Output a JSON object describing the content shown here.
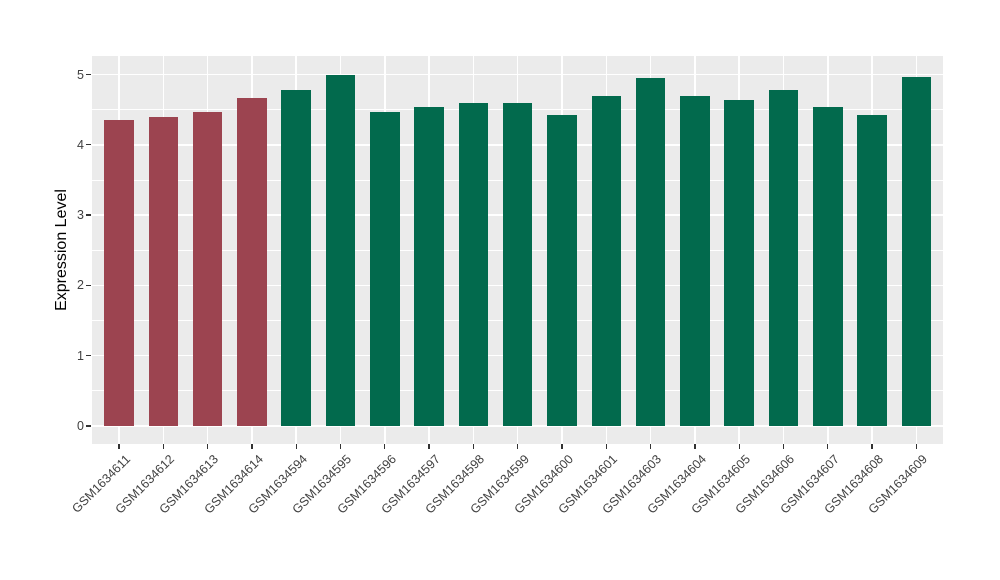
{
  "chart_data": {
    "type": "bar",
    "title": "",
    "xlabel": "",
    "ylabel": "Expression Level",
    "ylim": [
      0,
      5.25
    ],
    "yticks": [
      0,
      1,
      2,
      3,
      4,
      5
    ],
    "grid": "on",
    "legend": "none",
    "categories": [
      "GSM1634611",
      "GSM1634612",
      "GSM1634613",
      "GSM1634614",
      "GSM1634594",
      "GSM1634595",
      "GSM1634596",
      "GSM1634597",
      "GSM1634598",
      "GSM1634599",
      "GSM1634600",
      "GSM1634601",
      "GSM1634603",
      "GSM1634604",
      "GSM1634605",
      "GSM1634606",
      "GSM1634607",
      "GSM1634608",
      "GSM1634609"
    ],
    "values": [
      4.36,
      4.39,
      4.47,
      4.67,
      4.78,
      5.0,
      4.46,
      4.54,
      4.6,
      4.59,
      4.43,
      4.7,
      4.95,
      4.7,
      4.64,
      4.78,
      4.54,
      4.43,
      4.96
    ],
    "bar_colors": [
      "#9C4450",
      "#9C4450",
      "#9C4450",
      "#9C4450",
      "#026A4D",
      "#026A4D",
      "#026A4D",
      "#026A4D",
      "#026A4D",
      "#026A4D",
      "#026A4D",
      "#026A4D",
      "#026A4D",
      "#026A4D",
      "#026A4D",
      "#026A4D",
      "#026A4D",
      "#026A4D",
      "#026A4D"
    ]
  },
  "colors": {
    "panel_background": "#EBEBEB",
    "gridline": "#FFFFFF",
    "axis_text": "#404040",
    "tick": "#333333"
  }
}
